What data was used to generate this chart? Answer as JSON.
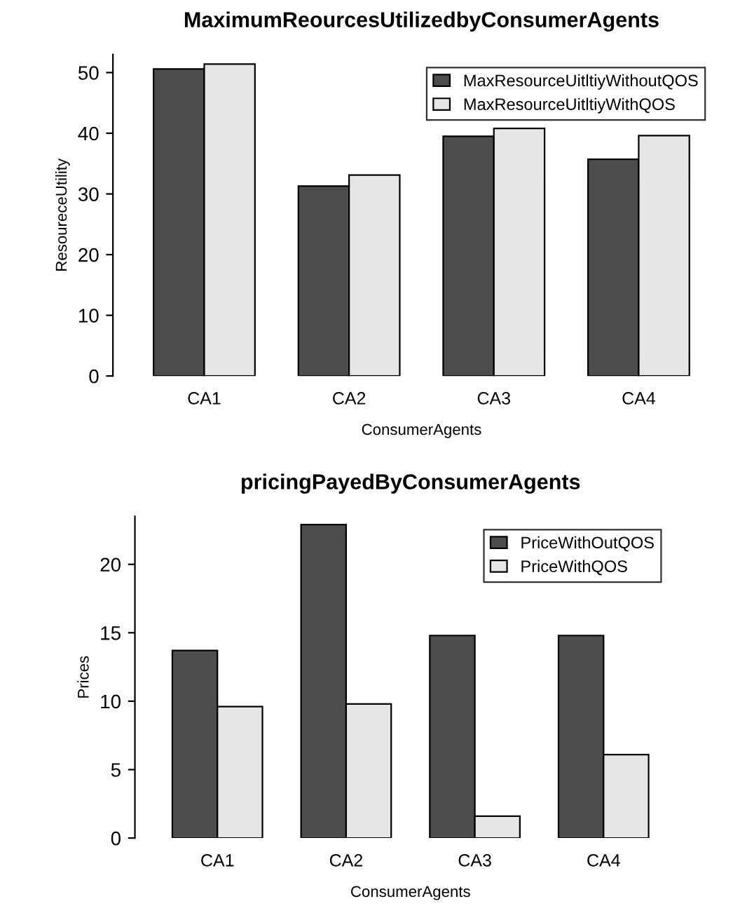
{
  "chart_data": [
    {
      "type": "bar",
      "title": "MaximumReourcesUtilizedbyConsumerAgents",
      "xlabel": "ConsumerAgents",
      "ylabel": "ResoureceUtility",
      "categories": [
        "CA1",
        "CA2",
        "CA3",
        "CA4"
      ],
      "series": [
        {
          "name": "MaxResourceUitltiyWithoutQOS",
          "color": "#4d4d4d",
          "values": [
            50.6,
            31.3,
            39.5,
            35.7
          ]
        },
        {
          "name": "MaxResourceUitltiyWithQOS",
          "color": "#e6e6e6",
          "values": [
            51.4,
            33.1,
            40.8,
            39.6
          ]
        }
      ],
      "ylim": [
        0,
        53
      ],
      "yticks": [
        0,
        10,
        20,
        30,
        40,
        50
      ],
      "grid": false,
      "legend": "top right"
    },
    {
      "type": "bar",
      "title": "pricingPayedByConsumerAgents",
      "xlabel": "ConsumerAgents",
      "ylabel": "Prices",
      "categories": [
        "CA1",
        "CA2",
        "CA3",
        "CA4"
      ],
      "series": [
        {
          "name": "PriceWithOutQOS",
          "color": "#4d4d4d",
          "values": [
            13.7,
            22.9,
            14.8,
            14.8
          ]
        },
        {
          "name": "PriceWithQOS",
          "color": "#e6e6e6",
          "values": [
            9.6,
            9.8,
            1.6,
            6.1
          ]
        }
      ],
      "ylim": [
        0,
        23.5
      ],
      "yticks": [
        0,
        5,
        10,
        15,
        20
      ],
      "grid": false,
      "legend": "top right"
    }
  ]
}
